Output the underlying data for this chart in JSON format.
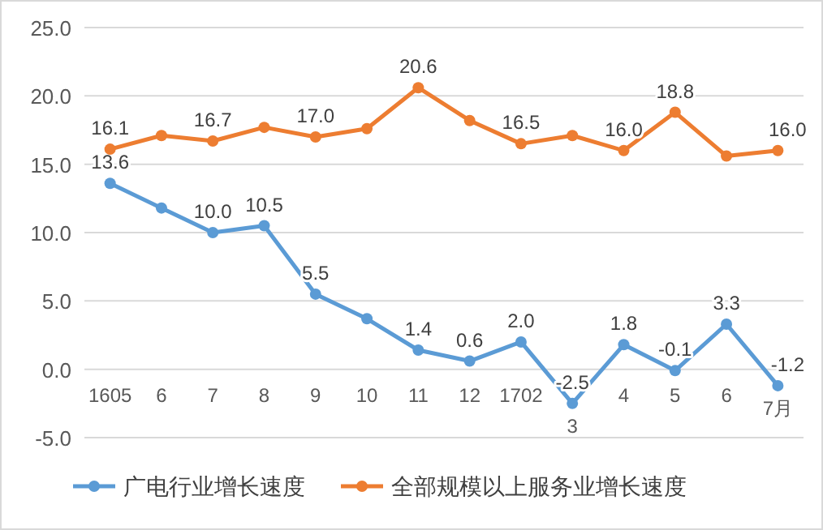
{
  "chart_data": {
    "type": "line",
    "categories": [
      "1605",
      "6",
      "7",
      "8",
      "9",
      "10",
      "11",
      "12",
      "1702",
      "3",
      "4",
      "5",
      "6",
      "7月"
    ],
    "series": [
      {
        "name": "广电行业增长速度",
        "color": "#5b9bd5",
        "values": [
          13.6,
          11.8,
          10.0,
          10.5,
          5.5,
          3.7,
          1.4,
          0.6,
          2.0,
          -2.5,
          1.8,
          -0.1,
          3.3,
          -1.2
        ],
        "value_labels": [
          "13.6",
          null,
          "10.0",
          "10.5",
          "5.5",
          null,
          "1.4",
          "0.6",
          "2.0",
          "-2.5",
          "1.8",
          "-0.1",
          "3.3",
          "-1.2"
        ]
      },
      {
        "name": "全部规模以上服务业增长速度",
        "color": "#ed7d31",
        "values": [
          16.1,
          17.1,
          16.7,
          17.7,
          17.0,
          17.6,
          20.6,
          18.2,
          16.5,
          17.1,
          16.0,
          18.8,
          15.6,
          16.0
        ],
        "value_labels": [
          "16.1",
          null,
          "16.7",
          null,
          "17.0",
          null,
          "20.6",
          null,
          "16.5",
          null,
          "16.0",
          "18.8",
          null,
          "16.0"
        ]
      }
    ],
    "ylim": [
      -5,
      25
    ],
    "yticks": [
      {
        "value": -5,
        "label": "-5.0"
      },
      {
        "value": 0,
        "label": "0.0"
      },
      {
        "value": 5,
        "label": "5.0"
      },
      {
        "value": 10,
        "label": "10.0"
      },
      {
        "value": 15,
        "label": "15.0"
      },
      {
        "value": 20,
        "label": "20.0"
      },
      {
        "value": 25,
        "label": "25.0"
      }
    ],
    "grid": "y",
    "legend": "bottom",
    "marker": "circle"
  }
}
